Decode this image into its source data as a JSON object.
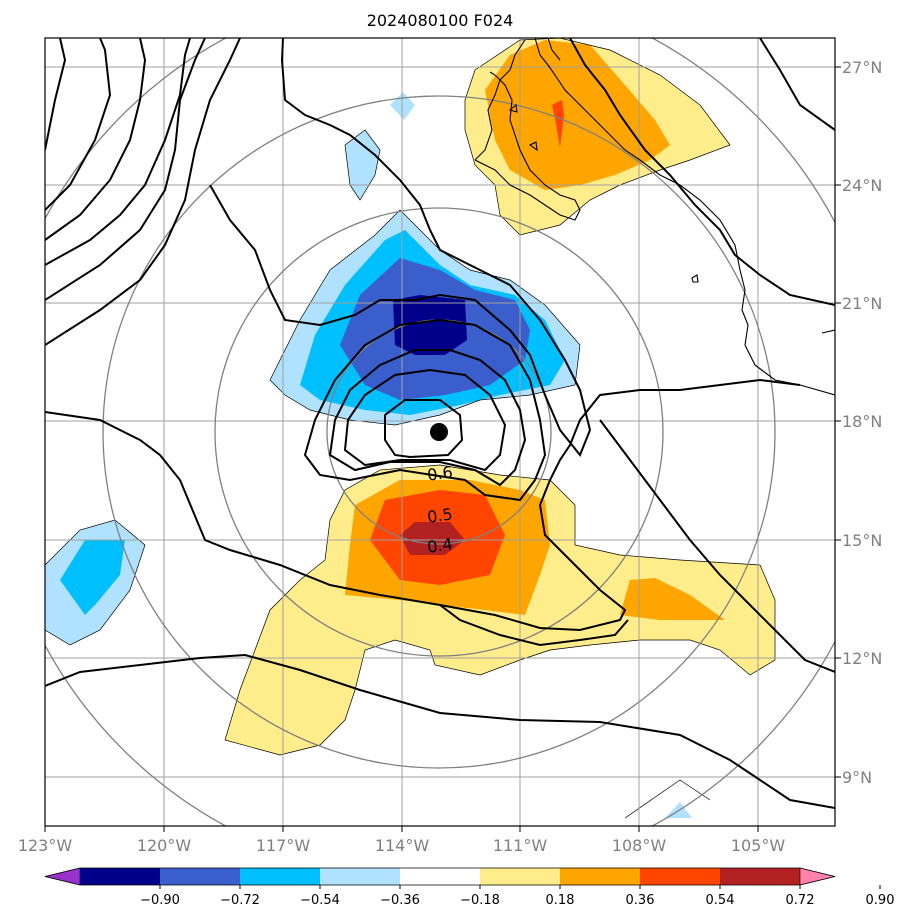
{
  "title": "2024080100 F024",
  "axes": {
    "lon_labels": [
      "123°W",
      "120°W",
      "117°W",
      "114°W",
      "111°W",
      "108°W",
      "105°W"
    ],
    "lat_labels": [
      "27°N",
      "24°N",
      "21°N",
      "18°N",
      "15°N",
      "12°N",
      "9°N"
    ]
  },
  "contour_labels": [
    "0.6",
    "0.5",
    "0.4"
  ],
  "colorbar": {
    "ticks": [
      "−0.90",
      "−0.72",
      "−0.54",
      "−0.36",
      "−0.18",
      "0.18",
      "0.36",
      "0.54",
      "0.72",
      "0.90"
    ],
    "colors": [
      "#9932cc",
      "#00008b",
      "#3a5fcd",
      "#00bfff",
      "#b0e2ff",
      "#ffffff",
      "#ffec8b",
      "#ffa500",
      "#ff4500",
      "#b22222",
      "#ff82ab"
    ]
  },
  "storm_center": {
    "lat": "17.8",
    "lon": "-113.0"
  }
}
